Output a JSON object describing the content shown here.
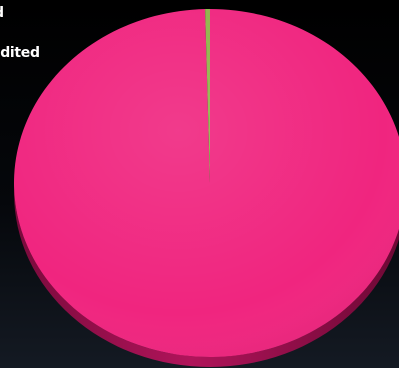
{
  "chart_data": {
    "type": "pie",
    "title": "",
    "style": "3d",
    "legend_placement": "top-left",
    "legend": [
      "d",
      "edited"
    ],
    "slices": [
      {
        "label": "d",
        "value": 99.6,
        "color": "#f0257f"
      },
      {
        "label": "edited",
        "value": 0.4,
        "color": "#8fb54a"
      }
    ]
  },
  "colors": {
    "background": "#000000",
    "side_shadow": "#9a0e4d",
    "legend_text": "#ffffff"
  }
}
